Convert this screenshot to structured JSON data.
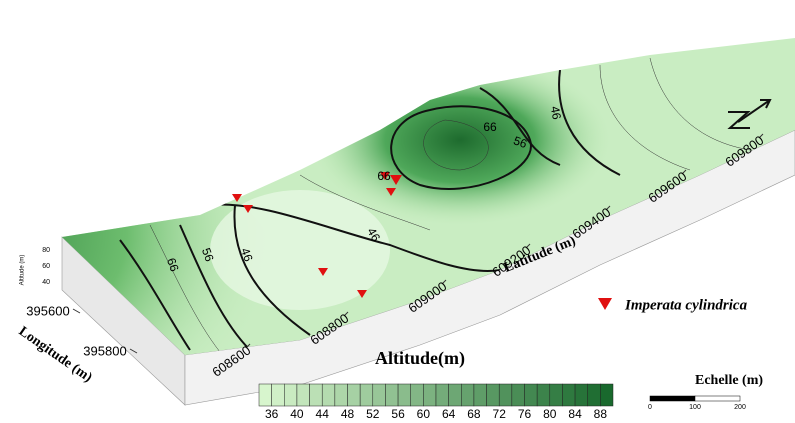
{
  "map": {
    "title": "Altitude(m)",
    "colorbar_ticks": [
      36,
      40,
      44,
      48,
      52,
      56,
      60,
      64,
      68,
      72,
      76,
      80,
      84,
      88
    ],
    "latitude": {
      "label": "Latitude (m)",
      "ticks": [
        608600,
        608800,
        609000,
        609200,
        609400,
        609600,
        609800
      ]
    },
    "longitude": {
      "label": "Longitude (m)",
      "ticks": [
        395600,
        395800
      ]
    },
    "altitude_axis": {
      "label": "Altitude (m)",
      "ticks": [
        80,
        60,
        40
      ]
    },
    "contour_labels": [
      "66",
      "56",
      "46",
      "46",
      "66",
      "66",
      "56",
      "46"
    ],
    "legend": "Imperata cylindrica",
    "scale": {
      "title": "Echelle (m)",
      "labels": [
        "0",
        "100",
        "200"
      ]
    }
  }
}
